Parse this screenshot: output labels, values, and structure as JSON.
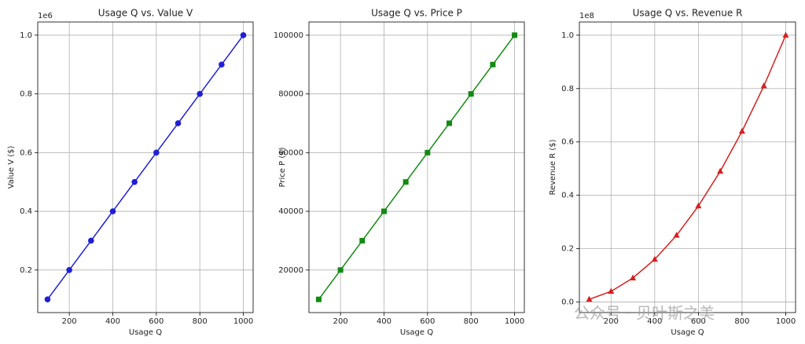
{
  "chart_data": [
    {
      "type": "line",
      "title": "Usage Q vs. Value V",
      "xlabel": "Usage Q",
      "ylabel": "Value V ($)",
      "y_offset_label": "1e6",
      "x": [
        100,
        200,
        300,
        400,
        500,
        600,
        700,
        800,
        900,
        1000
      ],
      "values": [
        0.1,
        0.2,
        0.3,
        0.4,
        0.5,
        0.6,
        0.7,
        0.8,
        0.9,
        1.0
      ],
      "color": "#1f1fd6",
      "marker": "circle",
      "xlim": [
        55,
        1045
      ],
      "ylim": [
        0.055,
        1.045
      ],
      "xticks": [
        200,
        400,
        600,
        800,
        1000
      ],
      "yticks": [
        0.2,
        0.4,
        0.6,
        0.8,
        {
          "value": 1,
          "label": "1.0"
        }
      ],
      "grid": true
    },
    {
      "type": "line",
      "title": "Usage Q vs. Price P",
      "xlabel": "Usage Q",
      "ylabel": "Price P ($)",
      "x": [
        100,
        200,
        300,
        400,
        500,
        600,
        700,
        800,
        900,
        1000
      ],
      "values": [
        10000,
        20000,
        30000,
        40000,
        50000,
        60000,
        70000,
        80000,
        90000,
        100000
      ],
      "color": "#138a13",
      "marker": "square",
      "xlim": [
        55,
        1045
      ],
      "ylim": [
        5500,
        104500
      ],
      "xticks": [
        200,
        400,
        600,
        800,
        1000
      ],
      "yticks": [
        20000,
        40000,
        60000,
        80000,
        100000
      ],
      "grid": true
    },
    {
      "type": "line",
      "title": "Usage Q vs. Revenue R",
      "xlabel": "Usage Q",
      "ylabel": "Revenue R ($)",
      "y_offset_label": "1e8",
      "x": [
        100,
        200,
        300,
        400,
        500,
        600,
        700,
        800,
        900,
        1000
      ],
      "values": [
        0.01,
        0.04,
        0.09,
        0.16,
        0.25,
        0.36,
        0.49,
        0.64,
        0.81,
        1.0
      ],
      "color": "#d62020",
      "marker": "triangle",
      "xlim": [
        55,
        1045
      ],
      "ylim": [
        -0.0395,
        1.0495
      ],
      "xticks": [
        200,
        400,
        600,
        800,
        1000
      ],
      "yticks": [
        {
          "value": 0,
          "label": "0.0"
        },
        0.2,
        0.4,
        0.6,
        0.8,
        {
          "value": 1,
          "label": "1.0"
        }
      ],
      "grid": true
    }
  ],
  "watermark": "公众号 · 贝叶斯之美"
}
